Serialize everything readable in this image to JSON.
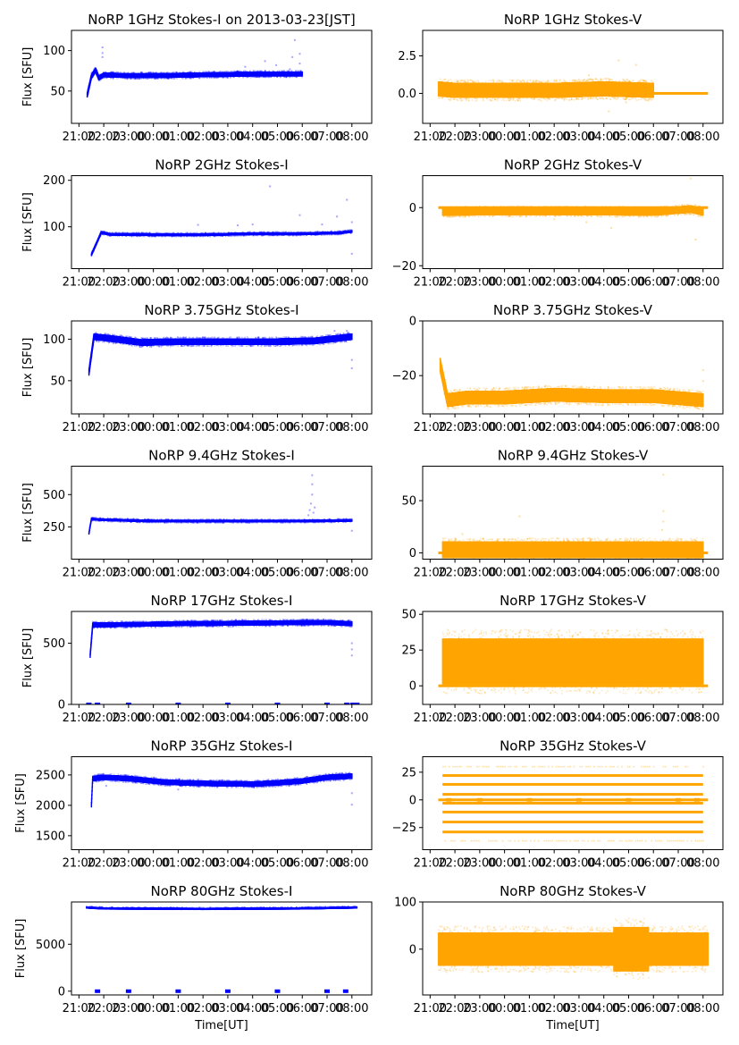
{
  "figure": {
    "date_label": "2013-03-23[JST]",
    "xlabel": "Time[UT]",
    "ylabel": "Flux [SFU]",
    "colors": {
      "stokes_i": "#0000ff",
      "stokes_v": "#ffa500"
    }
  },
  "chart_data": [
    {
      "type": "scatter",
      "title": "NoRP 1GHz Stokes-I on 2013-03-23[JST]",
      "xlabel": "",
      "ylabel": "Flux [SFU]",
      "ylim": [
        10,
        125
      ],
      "yticks": [
        50,
        100
      ],
      "ytick_labels": [
        "50",
        "100"
      ],
      "xlim_hours": [
        20.7,
        32.8
      ],
      "xticks": [
        "21:00",
        "22:00",
        "23:00",
        "00:00",
        "01:00",
        "02:00",
        "03:00",
        "04:00",
        "05:00",
        "06:00",
        "07:00",
        "08:00"
      ],
      "color": "#0000ff",
      "t_start": 21.33,
      "t_end": 30.0,
      "profile": [
        [
          21.33,
          45
        ],
        [
          21.5,
          68
        ],
        [
          21.67,
          76
        ],
        [
          21.8,
          66
        ],
        [
          22.0,
          70
        ],
        [
          23.0,
          69
        ],
        [
          24.0,
          69
        ],
        [
          26.0,
          70
        ],
        [
          28.0,
          71
        ],
        [
          30.0,
          71
        ]
      ],
      "spread": 3,
      "outliers": [
        [
          21.95,
          104
        ],
        [
          21.95,
          97
        ],
        [
          21.95,
          92
        ],
        [
          27.7,
          80
        ],
        [
          28.5,
          87
        ],
        [
          28.95,
          82
        ],
        [
          29.7,
          113
        ],
        [
          29.5,
          77
        ],
        [
          29.9,
          96
        ],
        [
          29.9,
          84
        ],
        [
          29.6,
          92
        ]
      ],
      "grid": false
    },
    {
      "type": "scatter",
      "title": "NoRP 1GHz Stokes-V",
      "xlabel": "",
      "ylabel": "",
      "ylim": [
        -2,
        4.2
      ],
      "yticks": [
        0.0,
        2.5
      ],
      "ytick_labels": [
        "0.0",
        "2.5"
      ],
      "xlim_hours": [
        20.7,
        32.8
      ],
      "xticks": [
        "21:00",
        "22:00",
        "23:00",
        "00:00",
        "01:00",
        "02:00",
        "03:00",
        "04:00",
        "05:00",
        "06:00",
        "07:00",
        "08:00"
      ],
      "color": "#ffa500",
      "t_start": 21.33,
      "t_end": 30.0,
      "profile": [
        [
          21.33,
          0.3
        ],
        [
          22.0,
          0.2
        ],
        [
          24.0,
          0.2
        ],
        [
          26.0,
          0.2
        ],
        [
          28.0,
          0.3
        ],
        [
          30.0,
          0.2
        ]
      ],
      "spread": 0.5,
      "flat_after": {
        "t_start": 30.0,
        "t_end": 32.2,
        "value": 0.0
      },
      "outliers": [
        [
          28.6,
          2.2
        ],
        [
          29.3,
          1.9
        ],
        [
          27.4,
          1.2
        ],
        [
          28.2,
          -1.2
        ],
        [
          28.9,
          -0.6
        ]
      ],
      "grid": false
    },
    {
      "type": "scatter",
      "title": "NoRP 2GHz Stokes-I",
      "xlabel": "",
      "ylabel": "Flux [SFU]",
      "ylim": [
        10,
        210
      ],
      "yticks": [
        100,
        200
      ],
      "ytick_labels": [
        "100",
        "200"
      ],
      "xlim_hours": [
        20.7,
        32.8
      ],
      "xticks": [
        "21:00",
        "22:00",
        "23:00",
        "00:00",
        "01:00",
        "02:00",
        "03:00",
        "04:00",
        "05:00",
        "06:00",
        "07:00",
        "08:00"
      ],
      "color": "#0000ff",
      "t_start": 21.5,
      "t_end": 32.0,
      "profile": [
        [
          21.5,
          40
        ],
        [
          21.9,
          88
        ],
        [
          22.2,
          84
        ],
        [
          24.0,
          83
        ],
        [
          26.0,
          83
        ],
        [
          28.0,
          85
        ],
        [
          30.0,
          85
        ],
        [
          31.5,
          87
        ],
        [
          32.0,
          90
        ]
      ],
      "spread": 3,
      "outliers": [
        [
          25.8,
          104
        ],
        [
          28.7,
          187
        ],
        [
          31.8,
          158
        ],
        [
          32.0,
          42
        ],
        [
          31.4,
          122
        ],
        [
          29.9,
          125
        ],
        [
          28.0,
          105
        ],
        [
          27.4,
          103
        ],
        [
          32.0,
          110
        ],
        [
          30.8,
          105
        ]
      ],
      "grid": false
    },
    {
      "type": "scatter",
      "title": "NoRP 2GHz Stokes-V",
      "xlabel": "",
      "ylabel": "",
      "ylim": [
        -21,
        11
      ],
      "yticks": [
        -20,
        0
      ],
      "ytick_labels": [
        "−20",
        "0"
      ],
      "xlim_hours": [
        20.7,
        32.8
      ],
      "xticks": [
        "21:00",
        "22:00",
        "23:00",
        "00:00",
        "01:00",
        "02:00",
        "03:00",
        "04:00",
        "05:00",
        "06:00",
        "07:00",
        "08:00"
      ],
      "color": "#ffa500",
      "t_start": 21.5,
      "t_end": 32.0,
      "profile": [
        [
          21.5,
          -1.5
        ],
        [
          24.0,
          -1.3
        ],
        [
          27.0,
          -1.3
        ],
        [
          30.0,
          -1.5
        ],
        [
          31.5,
          -0.5
        ],
        [
          32.0,
          -1.5
        ]
      ],
      "spread": 1.3,
      "flat_after": {
        "t_start": 21.33,
        "t_end": 32.2,
        "value": 0.0
      },
      "outliers": [
        [
          31.7,
          -11
        ],
        [
          31.5,
          10
        ],
        [
          27.3,
          -5
        ],
        [
          28.3,
          -7
        ],
        [
          26.0,
          -4
        ]
      ],
      "grid": false
    },
    {
      "type": "scatter",
      "title": "NoRP 3.75GHz Stokes-I",
      "xlabel": "",
      "ylabel": "Flux [SFU]",
      "ylim": [
        10,
        122
      ],
      "yticks": [
        50,
        100
      ],
      "ytick_labels": [
        "50",
        "100"
      ],
      "xlim_hours": [
        20.7,
        32.8
      ],
      "xticks": [
        "21:00",
        "22:00",
        "23:00",
        "00:00",
        "01:00",
        "02:00",
        "03:00",
        "04:00",
        "05:00",
        "06:00",
        "07:00",
        "08:00"
      ],
      "color": "#0000ff",
      "t_start": 21.4,
      "t_end": 32.0,
      "profile": [
        [
          21.4,
          60
        ],
        [
          21.6,
          103
        ],
        [
          22.5,
          100
        ],
        [
          23.5,
          96
        ],
        [
          25.0,
          97
        ],
        [
          27.0,
          97
        ],
        [
          29.0,
          97
        ],
        [
          30.5,
          98
        ],
        [
          32.0,
          103
        ]
      ],
      "spread": 4,
      "outliers": [
        [
          32.0,
          65
        ],
        [
          32.0,
          75
        ],
        [
          31.3,
          110
        ],
        [
          31.8,
          110
        ]
      ],
      "grid": false
    },
    {
      "type": "scatter",
      "title": "NoRP 3.75GHz Stokes-V",
      "xlabel": "",
      "ylabel": "",
      "ylim": [
        -34,
        0
      ],
      "yticks": [
        -20,
        0
      ],
      "ytick_labels": [
        "−20",
        "0"
      ],
      "xlim_hours": [
        20.7,
        32.8
      ],
      "xticks": [
        "21:00",
        "22:00",
        "23:00",
        "00:00",
        "01:00",
        "02:00",
        "03:00",
        "04:00",
        "05:00",
        "06:00",
        "07:00",
        "08:00"
      ],
      "color": "#ffa500",
      "t_start": 21.4,
      "t_end": 32.0,
      "profile": [
        [
          21.4,
          -16
        ],
        [
          21.7,
          -29
        ],
        [
          22.5,
          -28
        ],
        [
          24.0,
          -28
        ],
        [
          26.0,
          -27
        ],
        [
          28.0,
          -27.5
        ],
        [
          30.0,
          -27.5
        ],
        [
          32.0,
          -29
        ]
      ],
      "spread": 2.5,
      "outliers": [
        [
          32.0,
          -18
        ],
        [
          32.0,
          -22
        ]
      ],
      "grid": false
    },
    {
      "type": "scatter",
      "title": "NoRP 9.4GHz Stokes-I",
      "xlabel": "",
      "ylabel": "Flux [SFU]",
      "ylim": [
        0,
        720
      ],
      "yticks": [
        250,
        500
      ],
      "ytick_labels": [
        "250",
        "500"
      ],
      "xlim_hours": [
        20.7,
        32.8
      ],
      "xticks": [
        "21:00",
        "22:00",
        "23:00",
        "00:00",
        "01:00",
        "02:00",
        "03:00",
        "04:00",
        "05:00",
        "06:00",
        "07:00",
        "08:00"
      ],
      "color": "#0000ff",
      "t_start": 21.4,
      "t_end": 32.0,
      "profile": [
        [
          21.4,
          200
        ],
        [
          21.5,
          310
        ],
        [
          22.0,
          305
        ],
        [
          24.0,
          295
        ],
        [
          27.0,
          295
        ],
        [
          30.0,
          295
        ],
        [
          32.0,
          300
        ]
      ],
      "spread": 10,
      "outliers": [
        [
          30.4,
          650
        ],
        [
          30.4,
          580
        ],
        [
          30.4,
          500
        ],
        [
          30.35,
          430
        ],
        [
          30.3,
          380
        ],
        [
          30.45,
          360
        ],
        [
          30.25,
          340
        ],
        [
          30.5,
          400
        ],
        [
          32.0,
          220
        ]
      ],
      "grid": false
    },
    {
      "type": "scatter",
      "title": "NoRP 9.4GHz Stokes-V",
      "xlabel": "",
      "ylabel": "",
      "ylim": [
        -6,
        83
      ],
      "yticks": [
        0,
        50
      ],
      "ytick_labels": [
        "0",
        "50"
      ],
      "xlim_hours": [
        20.7,
        32.8
      ],
      "xticks": [
        "21:00",
        "22:00",
        "23:00",
        "00:00",
        "01:00",
        "02:00",
        "03:00",
        "04:00",
        "05:00",
        "06:00",
        "07:00",
        "08:00"
      ],
      "color": "#ffa500",
      "t_start": 21.5,
      "t_end": 32.0,
      "profile": [
        [
          21.5,
          3
        ],
        [
          32.0,
          3
        ]
      ],
      "spread": 8,
      "flat_after": {
        "t_start": 21.33,
        "t_end": 32.2,
        "value": 0.0
      },
      "outliers": [
        [
          30.4,
          75
        ],
        [
          30.4,
          40
        ],
        [
          30.4,
          30
        ],
        [
          30.35,
          22
        ],
        [
          24.6,
          35
        ],
        [
          22.3,
          18
        ]
      ],
      "grid": false
    },
    {
      "type": "scatter",
      "title": "NoRP 17GHz Stokes-I",
      "xlabel": "",
      "ylabel": "Flux [SFU]",
      "ylim": [
        0,
        760
      ],
      "yticks": [
        0,
        500
      ],
      "ytick_labels": [
        "0",
        "500"
      ],
      "xlim_hours": [
        20.7,
        32.8
      ],
      "xticks": [
        "21:00",
        "22:00",
        "23:00",
        "00:00",
        "01:00",
        "02:00",
        "03:00",
        "04:00",
        "05:00",
        "06:00",
        "07:00",
        "08:00"
      ],
      "color": "#0000ff",
      "t_start": 21.45,
      "t_end": 32.0,
      "profile": [
        [
          21.45,
          400
        ],
        [
          21.55,
          650
        ],
        [
          22.0,
          650
        ],
        [
          25.0,
          660
        ],
        [
          28.0,
          665
        ],
        [
          31.0,
          670
        ],
        [
          32.0,
          660
        ]
      ],
      "spread": 20,
      "zero_marks": [
        21.4,
        21.75,
        23.0,
        25.0,
        27.0,
        29.0,
        31.0,
        31.8,
        32.05,
        32.2
      ],
      "outliers": [
        [
          32.0,
          400
        ],
        [
          32.0,
          450
        ],
        [
          32.0,
          500
        ]
      ],
      "grid": false
    },
    {
      "type": "scatter",
      "title": "NoRP 17GHz Stokes-V",
      "xlabel": "",
      "ylabel": "",
      "ylim": [
        -13,
        52
      ],
      "yticks": [
        0,
        25,
        50
      ],
      "ytick_labels": [
        "0",
        "25",
        "50"
      ],
      "xlim_hours": [
        20.7,
        32.8
      ],
      "xticks": [
        "21:00",
        "22:00",
        "23:00",
        "00:00",
        "01:00",
        "02:00",
        "03:00",
        "04:00",
        "05:00",
        "06:00",
        "07:00",
        "08:00"
      ],
      "color": "#ffa500",
      "t_start": 21.5,
      "t_end": 32.0,
      "profile": [
        [
          21.5,
          17
        ],
        [
          32.0,
          17
        ]
      ],
      "spread": 16,
      "flat_after": {
        "t_start": 21.33,
        "t_end": 32.2,
        "value": 0.0
      },
      "outliers": [],
      "grid": false
    },
    {
      "type": "scatter",
      "title": "NoRP 35GHz Stokes-I",
      "xlabel": "",
      "ylabel": "Flux [SFU]",
      "ylim": [
        1270,
        2800
      ],
      "yticks": [
        1500,
        2000,
        2500
      ],
      "ytick_labels": [
        "1500",
        "2000",
        "2500"
      ],
      "xlim_hours": [
        20.7,
        32.8
      ],
      "xticks": [
        "21:00",
        "22:00",
        "23:00",
        "00:00",
        "01:00",
        "02:00",
        "03:00",
        "04:00",
        "05:00",
        "06:00",
        "07:00",
        "08:00"
      ],
      "color": "#0000ff",
      "t_start": 21.5,
      "t_end": 32.0,
      "profile": [
        [
          21.5,
          2010
        ],
        [
          21.55,
          2440
        ],
        [
          22.0,
          2460
        ],
        [
          23.0,
          2440
        ],
        [
          24.5,
          2380
        ],
        [
          26.0,
          2360
        ],
        [
          28.0,
          2350
        ],
        [
          29.0,
          2370
        ],
        [
          30.0,
          2400
        ],
        [
          31.0,
          2460
        ],
        [
          32.0,
          2480
        ]
      ],
      "spread": 45,
      "outliers": [
        [
          32.0,
          2010
        ],
        [
          32.0,
          2200
        ],
        [
          25.0,
          2260
        ],
        [
          22.1,
          2320
        ]
      ],
      "grid": false
    },
    {
      "type": "scatter",
      "title": "NoRP 35GHz Stokes-V",
      "xlabel": "",
      "ylabel": "",
      "ylim": [
        -45,
        39
      ],
      "yticks": [
        -25,
        0,
        25
      ],
      "ytick_labels": [
        "−25",
        "0",
        "25"
      ],
      "xlim_hours": [
        20.7,
        32.8
      ],
      "xticks": [
        "21:00",
        "22:00",
        "23:00",
        "00:00",
        "01:00",
        "02:00",
        "03:00",
        "04:00",
        "05:00",
        "06:00",
        "07:00",
        "08:00"
      ],
      "color": "#ffa500",
      "t_start": 21.5,
      "t_end": 32.0,
      "levels": [
        30,
        22,
        14,
        5,
        -3,
        -11,
        -20,
        -29,
        -37
      ],
      "dense_levels": [
        22,
        14,
        5,
        -3,
        -11,
        -20,
        -29
      ],
      "flat_after": {
        "t_start": 21.33,
        "t_end": 32.2,
        "value": 0.0
      },
      "zero_marks": [
        21.75,
        23.0,
        25.0,
        27.0,
        29.0,
        31.0,
        31.75
      ],
      "grid": false
    },
    {
      "type": "scatter",
      "title": "NoRP 80GHz Stokes-I",
      "xlabel": "Time[UT]",
      "ylabel": "Flux [SFU]",
      "ylim": [
        -400,
        9500
      ],
      "yticks": [
        0,
        5000
      ],
      "ytick_labels": [
        "0",
        "5000"
      ],
      "xlim_hours": [
        20.7,
        32.8
      ],
      "xticks": [
        "21:00",
        "22:00",
        "23:00",
        "00:00",
        "01:00",
        "02:00",
        "03:00",
        "04:00",
        "05:00",
        "06:00",
        "07:00",
        "08:00"
      ],
      "color": "#0000ff",
      "t_start": 21.3,
      "t_end": 32.2,
      "profile": [
        [
          21.3,
          8950
        ],
        [
          22.0,
          8850
        ],
        [
          26.0,
          8800
        ],
        [
          30.0,
          8850
        ],
        [
          32.2,
          8950
        ]
      ],
      "spread": 80,
      "zero_marks": [
        21.75,
        23.0,
        25.0,
        27.0,
        29.0,
        31.0,
        31.75
      ],
      "grid": false
    },
    {
      "type": "scatter",
      "title": "NoRP 80GHz Stokes-V",
      "xlabel": "Time[UT]",
      "ylabel": "",
      "ylim": [
        -97,
        100
      ],
      "yticks": [
        0,
        100
      ],
      "ytick_labels": [
        "0",
        "100"
      ],
      "xlim_hours": [
        20.7,
        32.8
      ],
      "xticks": [
        "21:00",
        "22:00",
        "23:00",
        "00:00",
        "01:00",
        "02:00",
        "03:00",
        "04:00",
        "05:00",
        "06:00",
        "07:00",
        "08:00"
      ],
      "color": "#ffa500",
      "t_start": 21.33,
      "t_end": 32.2,
      "profile": [
        [
          21.33,
          0
        ],
        [
          32.2,
          0
        ]
      ],
      "spread": 35,
      "bulge": {
        "t_start": 28.4,
        "t_end": 29.8,
        "extra": 12
      },
      "grid": false
    }
  ]
}
